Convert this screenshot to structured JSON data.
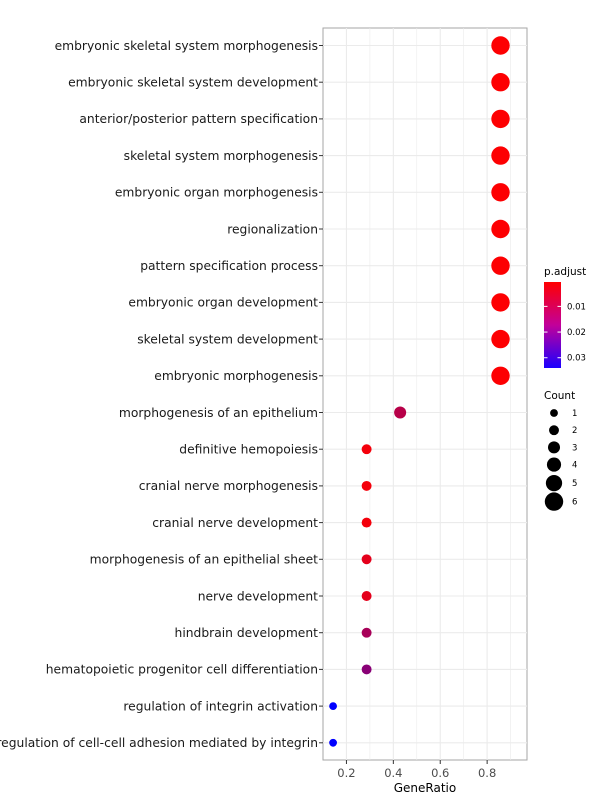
{
  "chart_data": {
    "type": "scatter",
    "title": "",
    "xlabel": "GeneRatio",
    "ylabel": "",
    "xlim": [
      0.1,
      0.97
    ],
    "xticks": [
      0.2,
      0.4,
      0.6,
      0.8
    ],
    "grid": true,
    "legend_placement": "right",
    "color_scale": {
      "title": "p.adjust",
      "low_color": "#ff0000",
      "high_color": "#0000ff",
      "range": [
        0.0005,
        0.034
      ],
      "breaks": [
        0.01,
        0.02,
        0.03
      ],
      "break_labels": [
        "0.01",
        "0.02",
        "0.03"
      ]
    },
    "size_scale": {
      "title": "Count",
      "values": [
        1,
        2,
        3,
        4,
        5,
        6
      ],
      "labels": [
        "1",
        "2",
        "3",
        "4",
        "5",
        "6"
      ]
    },
    "points": [
      {
        "term": "embryonic skeletal system morphogenesis",
        "gene_ratio": 0.857,
        "count": 6,
        "p_adjust": 0.0008
      },
      {
        "term": "embryonic skeletal system development",
        "gene_ratio": 0.857,
        "count": 6,
        "p_adjust": 0.0008
      },
      {
        "term": "anterior/posterior pattern specification",
        "gene_ratio": 0.857,
        "count": 6,
        "p_adjust": 0.0008
      },
      {
        "term": "skeletal system morphogenesis",
        "gene_ratio": 0.857,
        "count": 6,
        "p_adjust": 0.0008
      },
      {
        "term": "embryonic organ morphogenesis",
        "gene_ratio": 0.857,
        "count": 6,
        "p_adjust": 0.0008
      },
      {
        "term": "regionalization",
        "gene_ratio": 0.857,
        "count": 6,
        "p_adjust": 0.0008
      },
      {
        "term": "pattern specification process",
        "gene_ratio": 0.857,
        "count": 6,
        "p_adjust": 0.0008
      },
      {
        "term": "embryonic organ development",
        "gene_ratio": 0.857,
        "count": 6,
        "p_adjust": 0.0008
      },
      {
        "term": "skeletal system development",
        "gene_ratio": 0.857,
        "count": 6,
        "p_adjust": 0.0008
      },
      {
        "term": "embryonic morphogenesis",
        "gene_ratio": 0.857,
        "count": 6,
        "p_adjust": 0.0008
      },
      {
        "term": "morphogenesis of an epithelium",
        "gene_ratio": 0.429,
        "count": 3,
        "p_adjust": 0.01
      },
      {
        "term": "definitive hemopoiesis",
        "gene_ratio": 0.286,
        "count": 2,
        "p_adjust": 0.002
      },
      {
        "term": "cranial nerve morphogenesis",
        "gene_ratio": 0.286,
        "count": 2,
        "p_adjust": 0.002
      },
      {
        "term": "cranial nerve development",
        "gene_ratio": 0.286,
        "count": 2,
        "p_adjust": 0.002
      },
      {
        "term": "morphogenesis of an epithelial sheet",
        "gene_ratio": 0.286,
        "count": 2,
        "p_adjust": 0.004
      },
      {
        "term": "nerve development",
        "gene_ratio": 0.286,
        "count": 2,
        "p_adjust": 0.004
      },
      {
        "term": "hindbrain development",
        "gene_ratio": 0.286,
        "count": 2,
        "p_adjust": 0.012
      },
      {
        "term": "hematopoietic progenitor cell differentiation",
        "gene_ratio": 0.286,
        "count": 2,
        "p_adjust": 0.016
      },
      {
        "term": "regulation of integrin activation",
        "gene_ratio": 0.143,
        "count": 1,
        "p_adjust": 0.034
      },
      {
        "term": "regulation of cell-cell adhesion mediated by integrin",
        "gene_ratio": 0.143,
        "count": 1,
        "p_adjust": 0.034
      }
    ]
  }
}
